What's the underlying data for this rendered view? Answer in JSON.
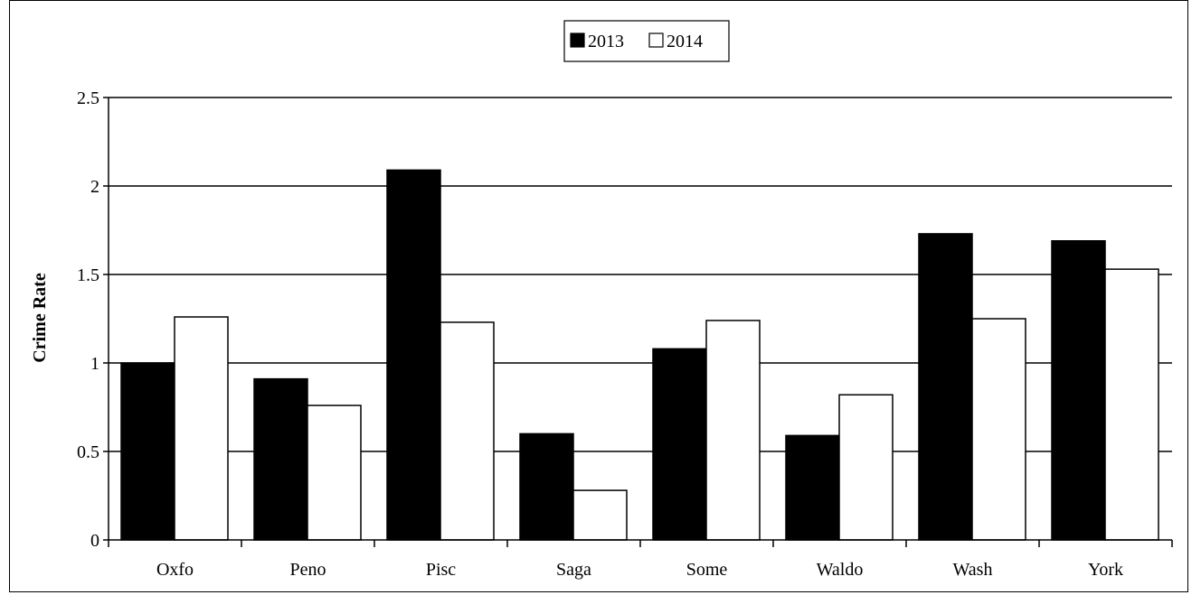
{
  "chart_data": {
    "type": "bar",
    "categories": [
      "Oxfo",
      "Peno",
      "Pisc",
      "Saga",
      "Some",
      "Waldo",
      "Wash",
      "York"
    ],
    "series": [
      {
        "name": "2013",
        "color": "#000000",
        "values": [
          1.0,
          0.91,
          2.09,
          0.6,
          1.08,
          0.59,
          1.73,
          1.69
        ]
      },
      {
        "name": "2014",
        "color": "#ffffff",
        "values": [
          1.26,
          0.76,
          1.23,
          0.28,
          1.24,
          0.82,
          1.25,
          1.53
        ]
      }
    ],
    "ylabel": "Crime Rate",
    "ylim": [
      0,
      2.5
    ],
    "yticks": [
      "0",
      "0.5",
      "1",
      "1.5",
      "2",
      "2.5"
    ],
    "grid": true,
    "legend_position": "top-center"
  }
}
